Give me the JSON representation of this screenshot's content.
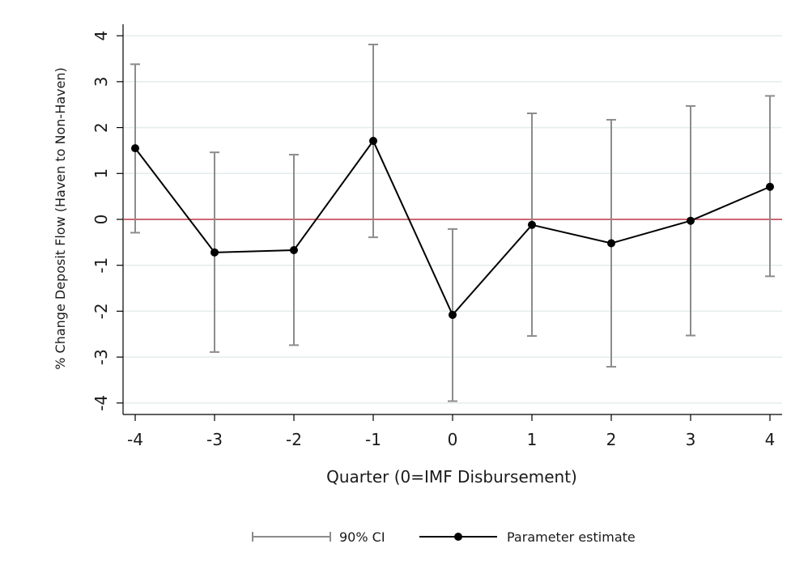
{
  "chart_data": {
    "type": "line",
    "title": "",
    "xlabel": "Quarter (0=IMF Disbursement)",
    "ylabel": "% Change Deposit Flow (Haven to Non-Haven)",
    "x_ticks": [
      "-4",
      "-3",
      "-2",
      "-1",
      "0",
      "1",
      "2",
      "3",
      "4"
    ],
    "y_ticks": [
      "-4",
      "-3",
      "-2",
      "-1",
      "0",
      "1",
      "2",
      "3",
      "4"
    ],
    "xlim": [
      -4,
      4
    ],
    "ylim": [
      -4.25,
      4.25
    ],
    "grid": "horizontal",
    "legend_position": "bottom",
    "reference_line": {
      "y": 0,
      "color": "#c0394b"
    },
    "colors": {
      "ci": "#8c8c8c",
      "estimate": "#000000",
      "grid": "#e3ecec"
    },
    "series": [
      {
        "name": "Parameter estimate",
        "x": [
          -4,
          -3,
          -2,
          -1,
          0,
          1,
          2,
          3,
          4
        ],
        "values": [
          1.55,
          -0.72,
          -0.67,
          1.71,
          -2.08,
          -0.12,
          -0.52,
          -0.03,
          0.71
        ]
      },
      {
        "name": "90% CI",
        "x": [
          -4,
          -3,
          -2,
          -1,
          0,
          1,
          2,
          3,
          4
        ],
        "lower": [
          -0.29,
          -2.89,
          -2.74,
          -0.39,
          -3.96,
          -2.54,
          -3.21,
          -2.53,
          -1.24
        ],
        "upper": [
          3.38,
          1.46,
          1.41,
          3.81,
          -0.21,
          2.31,
          2.17,
          2.47,
          2.69
        ]
      }
    ]
  }
}
